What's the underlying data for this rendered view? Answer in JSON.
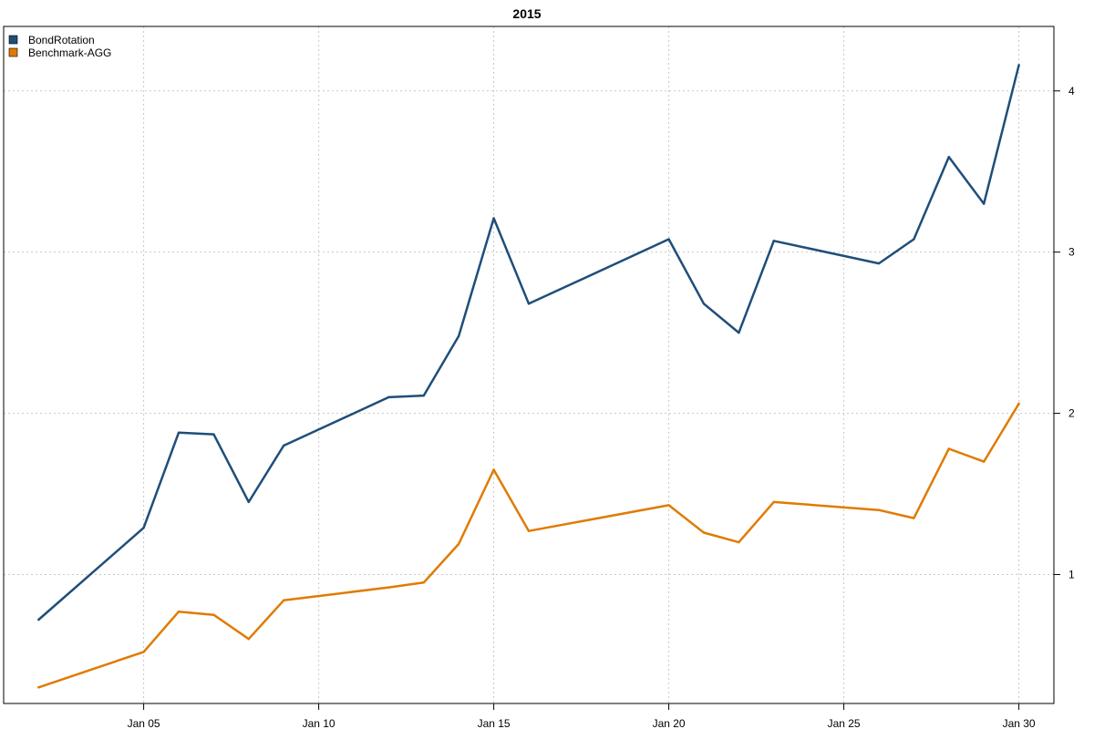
{
  "chart_data": {
    "type": "line",
    "title": "2015",
    "xlabel": "",
    "ylabel": "",
    "x": [
      "2015-01-02",
      "2015-01-05",
      "2015-01-06",
      "2015-01-07",
      "2015-01-08",
      "2015-01-09",
      "2015-01-12",
      "2015-01-13",
      "2015-01-14",
      "2015-01-15",
      "2015-01-16",
      "2015-01-20",
      "2015-01-21",
      "2015-01-22",
      "2015-01-23",
      "2015-01-26",
      "2015-01-27",
      "2015-01-28",
      "2015-01-29",
      "2015-01-30"
    ],
    "xlim": [
      "2015-01-01",
      "2015-01-31"
    ],
    "x_ticks": [
      "Jan 05",
      "Jan 10",
      "Jan 15",
      "Jan 20",
      "Jan 25",
      "Jan 30"
    ],
    "y_ticks": [
      "1",
      "2",
      "3",
      "4"
    ],
    "ylim": [
      0.2,
      4.4
    ],
    "y_axis_side": "right",
    "grid": true,
    "legend_position": "top-left",
    "series": [
      {
        "name": "BondRotation",
        "color": "#1f4e79",
        "values": [
          0.72,
          1.29,
          1.88,
          1.87,
          1.45,
          1.8,
          2.1,
          2.11,
          2.48,
          3.21,
          2.68,
          3.08,
          2.68,
          2.5,
          3.07,
          2.93,
          3.08,
          3.59,
          3.3,
          4.16
        ]
      },
      {
        "name": "Benchmark-AGG",
        "color": "#e07b00",
        "values": [
          0.3,
          0.52,
          0.77,
          0.75,
          0.6,
          0.84,
          0.92,
          0.95,
          1.19,
          1.65,
          1.27,
          1.43,
          1.26,
          1.2,
          1.45,
          1.4,
          1.35,
          1.78,
          1.7,
          2.06
        ]
      }
    ]
  }
}
